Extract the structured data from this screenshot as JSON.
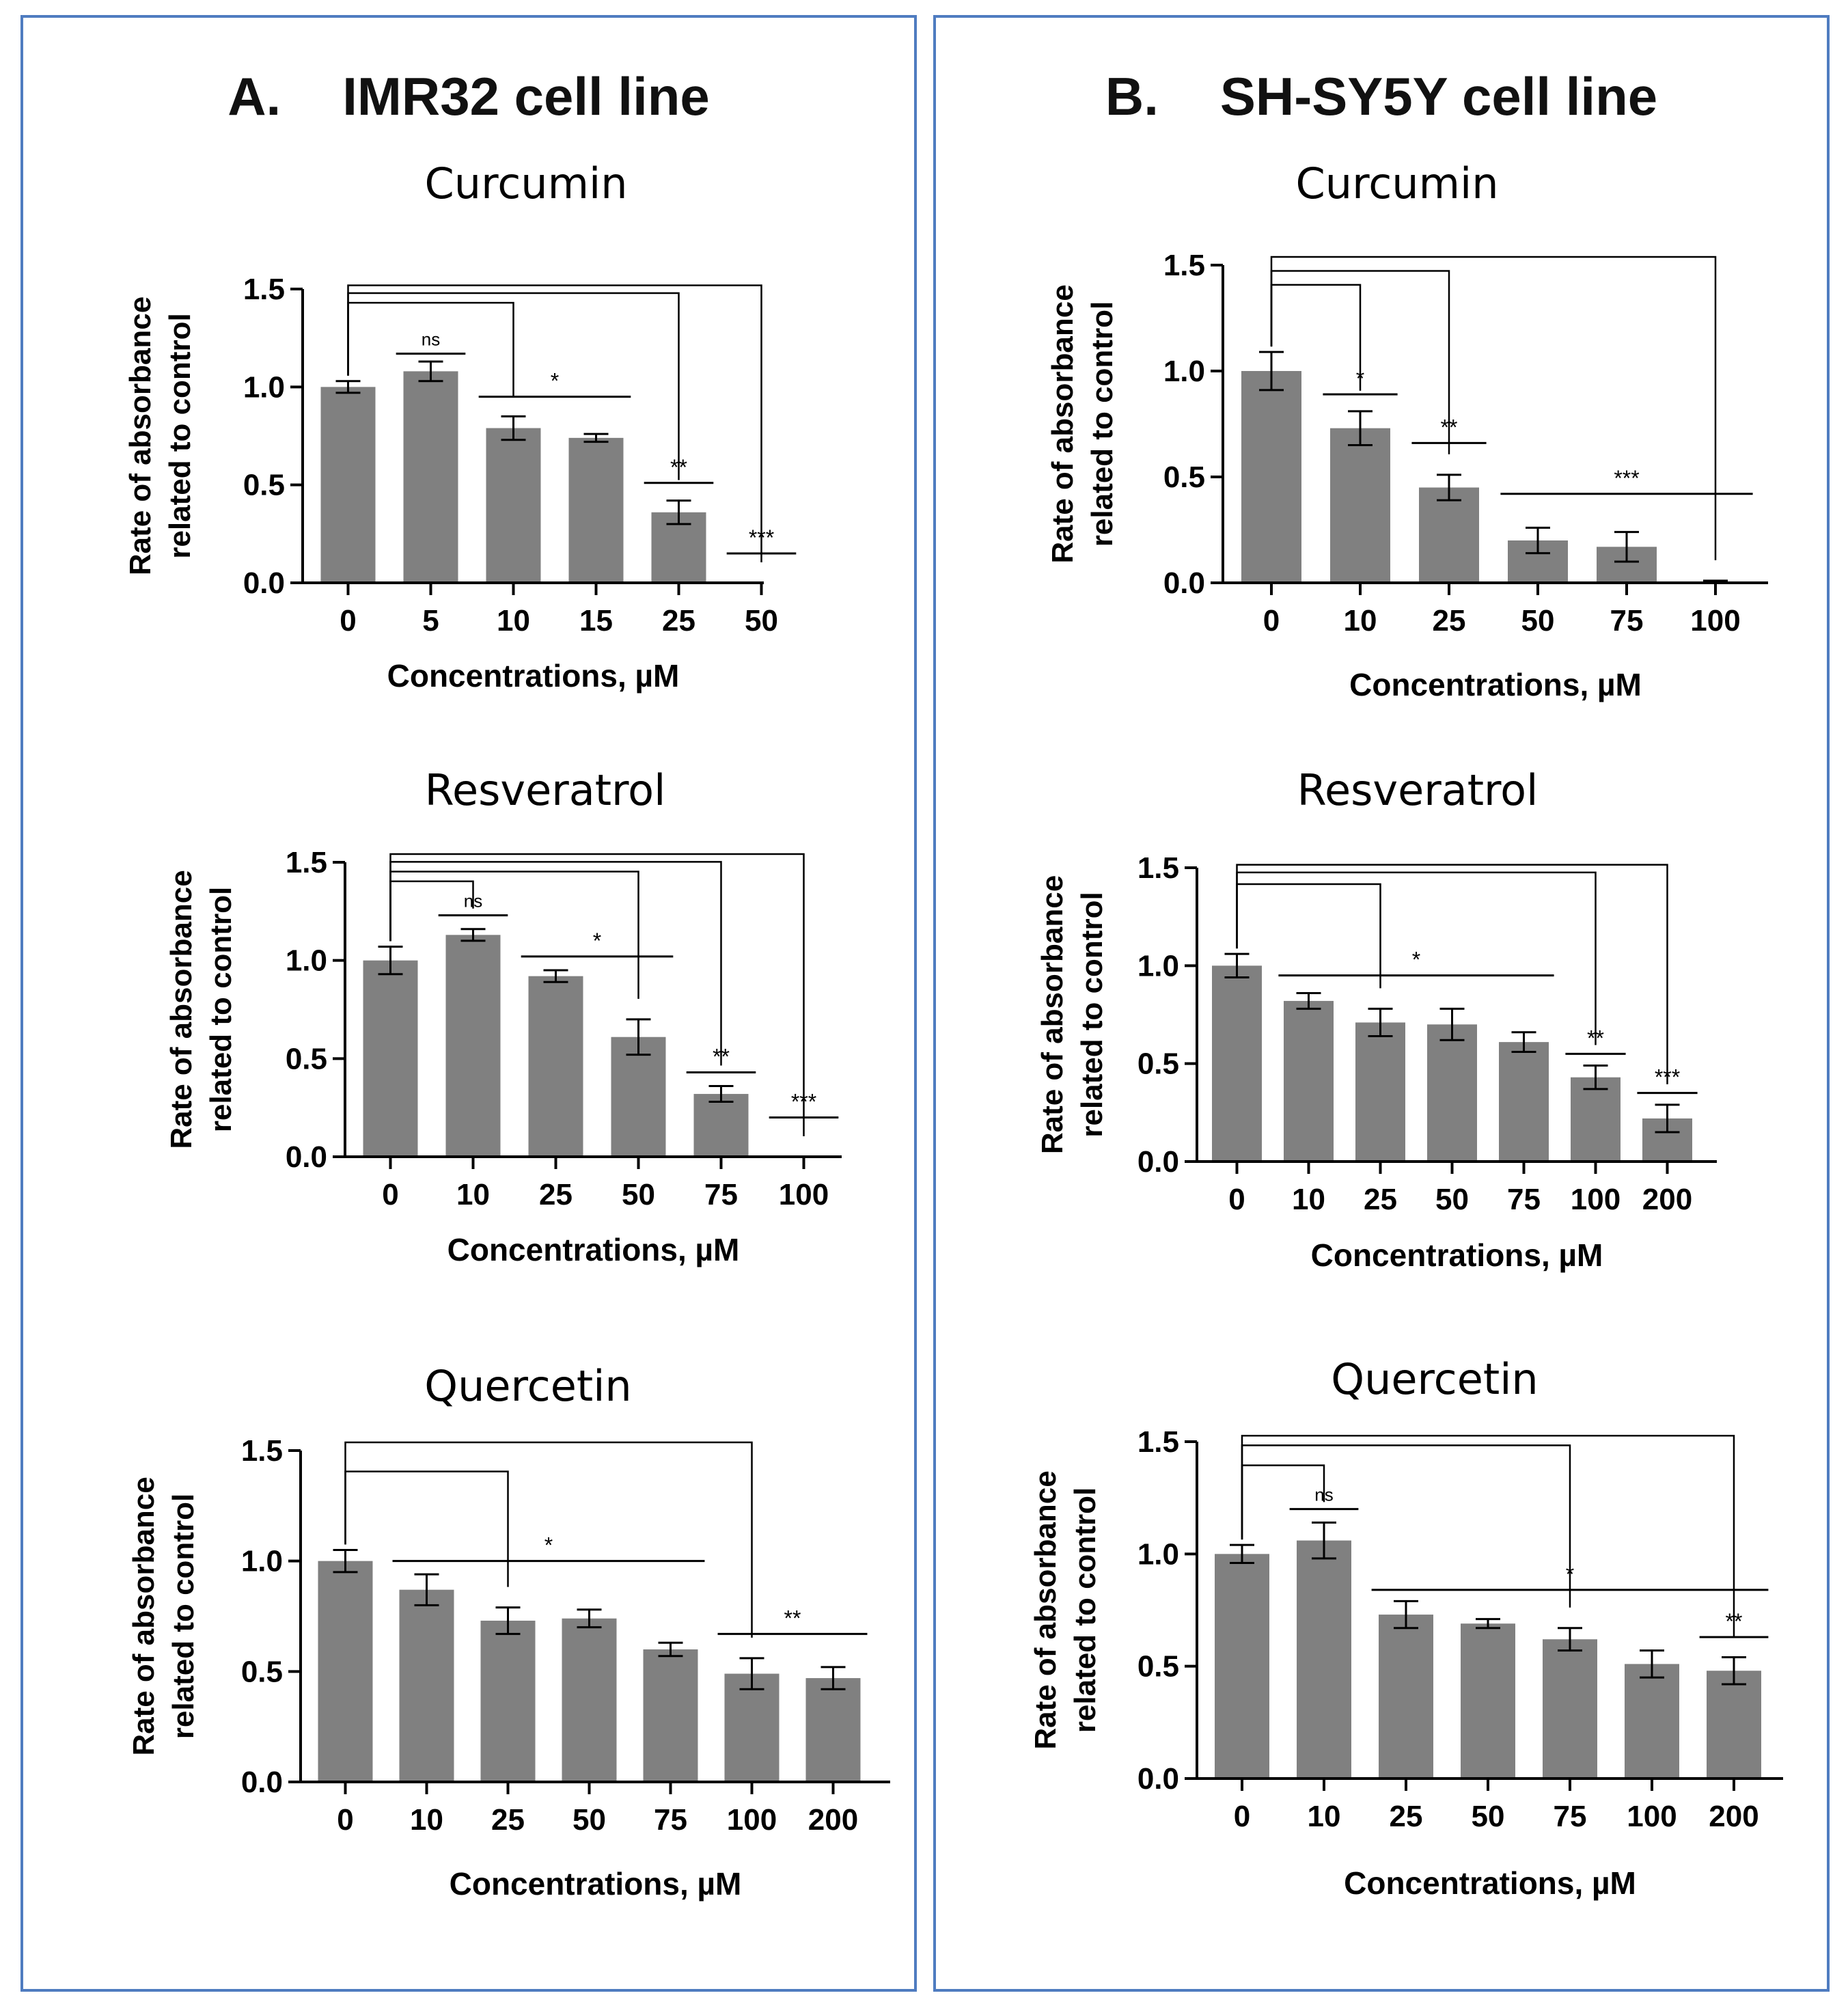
{
  "panels": [
    {
      "label": "A.",
      "title": "IMR32 cell line"
    },
    {
      "label": "B.",
      "title": "SH-SY5Y cell line"
    }
  ],
  "colors": {
    "bar": "#808080",
    "border": "#4f7cc0",
    "axis": "#000000"
  },
  "chart_data": [
    {
      "id": "a-curcumin",
      "panel": "A",
      "type": "bar",
      "title": "Curcumin",
      "xlabel": "Concentrations, µM",
      "ylabel": "Rate of absorbance related to control",
      "ylim": [
        0,
        1.5
      ],
      "yticks": [
        "0.0",
        "0.5",
        "1.0",
        "1.5"
      ],
      "categories": [
        "0",
        "5",
        "10",
        "15",
        "25",
        "50"
      ],
      "values": [
        1.0,
        1.08,
        0.79,
        0.74,
        0.36,
        0.0
      ],
      "errors": [
        0.03,
        0.05,
        0.06,
        0.02,
        0.06,
        0.0
      ],
      "significance": [
        {
          "kind": "bracket",
          "to": 2,
          "level": 0.66
        },
        {
          "kind": "bracket",
          "to": 4,
          "level": 0.81
        },
        {
          "kind": "bracket",
          "to": 5,
          "level": 0.93
        },
        {
          "kind": "line",
          "from": 1,
          "to": 1,
          "y": 1.17,
          "label": "ns"
        },
        {
          "kind": "line",
          "from": 2,
          "to": 3,
          "y": 0.95,
          "label": "*"
        },
        {
          "kind": "line",
          "from": 4,
          "to": 4,
          "y": 0.51,
          "label": "**"
        },
        {
          "kind": "line",
          "from": 5,
          "to": 5,
          "y": 0.15,
          "label": "***"
        }
      ]
    },
    {
      "id": "a-resveratrol",
      "panel": "A",
      "type": "bar",
      "title": "Resveratrol",
      "xlabel": "Concentrations, µM",
      "ylabel": "Rate of absorbance related to control",
      "ylim": [
        0,
        1.5
      ],
      "yticks": [
        "0.0",
        "0.5",
        "1.0",
        "1.5"
      ],
      "categories": [
        "0",
        "10",
        "25",
        "50",
        "75",
        "100"
      ],
      "values": [
        1.0,
        1.13,
        0.92,
        0.61,
        0.32,
        0.0
      ],
      "errors": [
        0.07,
        0.03,
        0.03,
        0.09,
        0.04,
        0.0
      ],
      "significance": [
        {
          "kind": "bracket",
          "to": 1,
          "level": 0.58
        },
        {
          "kind": "bracket",
          "to": 3,
          "level": 0.73
        },
        {
          "kind": "bracket",
          "to": 4,
          "level": 0.88
        },
        {
          "kind": "bracket",
          "to": 5,
          "level": 1.0
        },
        {
          "kind": "line",
          "from": 1,
          "to": 1,
          "y": 1.23,
          "label": "ns"
        },
        {
          "kind": "line",
          "from": 2,
          "to": 3,
          "y": 1.02,
          "label": "*"
        },
        {
          "kind": "line",
          "from": 4,
          "to": 4,
          "y": 0.43,
          "label": "**"
        },
        {
          "kind": "line",
          "from": 5,
          "to": 5,
          "y": 0.2,
          "label": "***"
        }
      ]
    },
    {
      "id": "a-quercetin",
      "panel": "A",
      "type": "bar",
      "title": "Quercetin",
      "xlabel": "Concentrations, µM",
      "ylabel": "Rate of absorbance related to control",
      "ylim": [
        0,
        1.5
      ],
      "yticks": [
        "0.0",
        "0.5",
        "1.0",
        "1.5"
      ],
      "categories": [
        "0",
        "10",
        "25",
        "50",
        "75",
        "100",
        "200"
      ],
      "values": [
        1.0,
        0.87,
        0.73,
        0.74,
        0.6,
        0.49,
        0.47
      ],
      "errors": [
        0.05,
        0.07,
        0.06,
        0.04,
        0.03,
        0.07,
        0.05
      ],
      "significance": [
        {
          "kind": "bracket",
          "to": 2,
          "level": 0.6
        },
        {
          "kind": "bracket",
          "to": 5,
          "level": 1.0
        },
        {
          "kind": "line",
          "from": 1,
          "to": 4,
          "y": 1.0,
          "label": "*"
        },
        {
          "kind": "line",
          "from": 5,
          "to": 6,
          "y": 0.67,
          "label": "**"
        }
      ]
    },
    {
      "id": "b-curcumin",
      "panel": "B",
      "type": "bar",
      "title": "Curcumin",
      "xlabel": "Concentrations, µM",
      "ylabel": "Rate of absorbance related to control",
      "ylim": [
        0,
        1.5
      ],
      "yticks": [
        "0.0",
        "0.5",
        "1.0",
        "1.5"
      ],
      "categories": [
        "0",
        "10",
        "25",
        "50",
        "75",
        "100"
      ],
      "values": [
        1.0,
        0.73,
        0.45,
        0.2,
        0.17,
        0.0
      ],
      "errors": [
        0.09,
        0.08,
        0.06,
        0.06,
        0.07,
        0.01
      ],
      "significance": [
        {
          "kind": "bracket",
          "to": 1,
          "level": 0.6
        },
        {
          "kind": "bracket",
          "to": 2,
          "level": 0.8
        },
        {
          "kind": "bracket",
          "to": 5,
          "level": 1.0
        },
        {
          "kind": "line",
          "from": 1,
          "to": 1,
          "y": 0.89,
          "label": "*"
        },
        {
          "kind": "line",
          "from": 2,
          "to": 2,
          "y": 0.66,
          "label": "**"
        },
        {
          "kind": "line",
          "from": 3,
          "to": 5,
          "y": 0.42,
          "label": "***"
        }
      ]
    },
    {
      "id": "b-resveratrol",
      "panel": "B",
      "type": "bar",
      "title": "Resveratrol",
      "xlabel": "Concentrations, µM",
      "ylabel": "Rate of absorbance related to control",
      "ylim": [
        0,
        1.5
      ],
      "yticks": [
        "0.0",
        "0.5",
        "1.0",
        "1.5"
      ],
      "categories": [
        "0",
        "10",
        "25",
        "50",
        "75",
        "100",
        "200"
      ],
      "values": [
        1.0,
        0.82,
        0.71,
        0.7,
        0.61,
        0.43,
        0.22
      ],
      "errors": [
        0.06,
        0.04,
        0.07,
        0.08,
        0.05,
        0.06,
        0.07
      ],
      "significance": [
        {
          "kind": "bracket",
          "to": 2,
          "level": 0.62
        },
        {
          "kind": "bracket",
          "to": 5,
          "level": 0.8
        },
        {
          "kind": "bracket",
          "to": 6,
          "level": 0.92
        },
        {
          "kind": "line",
          "from": 1,
          "to": 4,
          "y": 0.95,
          "label": "*"
        },
        {
          "kind": "line",
          "from": 5,
          "to": 5,
          "y": 0.55,
          "label": "**"
        },
        {
          "kind": "line",
          "from": 6,
          "to": 6,
          "y": 0.35,
          "label": "***"
        }
      ]
    },
    {
      "id": "b-quercetin",
      "panel": "B",
      "type": "bar",
      "title": "Quercetin",
      "xlabel": "Concentrations, µM",
      "ylabel": "Rate of absorbance related to control",
      "ylim": [
        0,
        1.5
      ],
      "yticks": [
        "0.0",
        "0.5",
        "1.0",
        "1.5"
      ],
      "categories": [
        "0",
        "10",
        "25",
        "50",
        "75",
        "100",
        "200"
      ],
      "values": [
        1.0,
        1.06,
        0.73,
        0.69,
        0.62,
        0.51,
        0.48
      ],
      "errors": [
        0.04,
        0.08,
        0.06,
        0.02,
        0.05,
        0.06,
        0.06
      ],
      "significance": [
        {
          "kind": "bracket",
          "to": 1,
          "level": 0.57
        },
        {
          "kind": "bracket",
          "to": 4,
          "level": 0.84
        },
        {
          "kind": "bracket",
          "to": 6,
          "level": 0.97
        },
        {
          "kind": "line",
          "from": 1,
          "to": 1,
          "y": 1.2,
          "label": "ns"
        },
        {
          "kind": "line",
          "from": 2,
          "to": 6,
          "y": 0.84,
          "label": "*"
        },
        {
          "kind": "line",
          "from": 6,
          "to": 6,
          "y": 0.63,
          "label": "**"
        }
      ]
    }
  ]
}
